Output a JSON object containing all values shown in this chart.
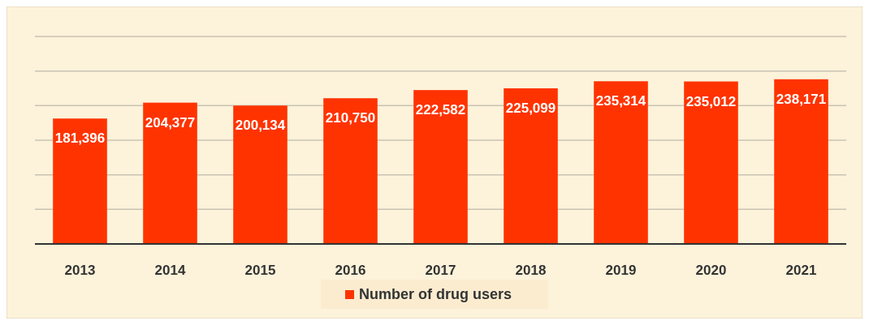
{
  "chart_data": {
    "type": "bar",
    "categories": [
      "2013",
      "2014",
      "2015",
      "2016",
      "2017",
      "2018",
      "2019",
      "2020",
      "2021"
    ],
    "series": [
      {
        "name": "Number of drug users",
        "color": "#ff3300",
        "values": [
          181396,
          204377,
          200134,
          210750,
          222582,
          225099,
          235314,
          235012,
          238171
        ],
        "value_labels": [
          "181,396",
          "204,377",
          "200,134",
          "210,750",
          "222,582",
          "225,099",
          "235,314",
          "235,012",
          "238,171"
        ]
      }
    ],
    "grid": "y",
    "tick_labels": "x",
    "legend": "bottom"
  }
}
